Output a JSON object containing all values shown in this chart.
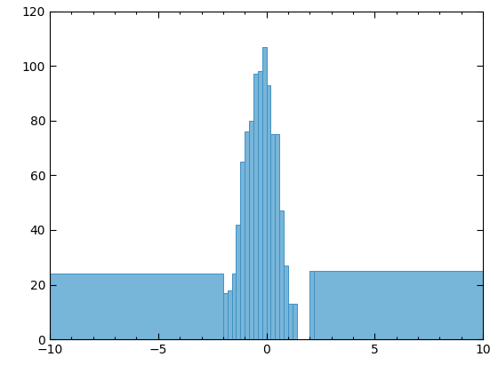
{
  "xlim": [
    -10,
    10
  ],
  "ylim": [
    0,
    120
  ],
  "xticks": [
    -10,
    -5,
    0,
    5,
    10
  ],
  "yticks": [
    0,
    20,
    40,
    60,
    80,
    100,
    120
  ],
  "bar_color": "#77B5D9",
  "bar_edge_color": "#4191C3",
  "bar_edge_width": 0.7,
  "background_color": "#FFFFFF",
  "figsize": [
    5.6,
    4.2
  ],
  "dpi": 100,
  "bar_lefts": [
    -10,
    -2.0,
    -1.8,
    -1.6,
    -1.4,
    -1.2,
    -1.0,
    -0.8,
    -0.6,
    -0.4,
    -0.2,
    0.0,
    0.2,
    0.4,
    0.6,
    0.8,
    1.0,
    1.2,
    1.4,
    1.6,
    1.8,
    2.0,
    2.2
  ],
  "bar_widths": [
    8.0,
    0.2,
    0.2,
    0.2,
    0.2,
    0.2,
    0.2,
    0.2,
    0.2,
    0.2,
    0.2,
    0.2,
    0.2,
    0.2,
    0.2,
    0.2,
    0.2,
    0.2,
    0.2,
    0.2,
    0.2,
    0.2,
    7.8
  ],
  "bar_heights": [
    24,
    17,
    18,
    24,
    42,
    65,
    76,
    80,
    97,
    98,
    107,
    93,
    75,
    75,
    47,
    27,
    13,
    13,
    0,
    0,
    0,
    25,
    25
  ]
}
